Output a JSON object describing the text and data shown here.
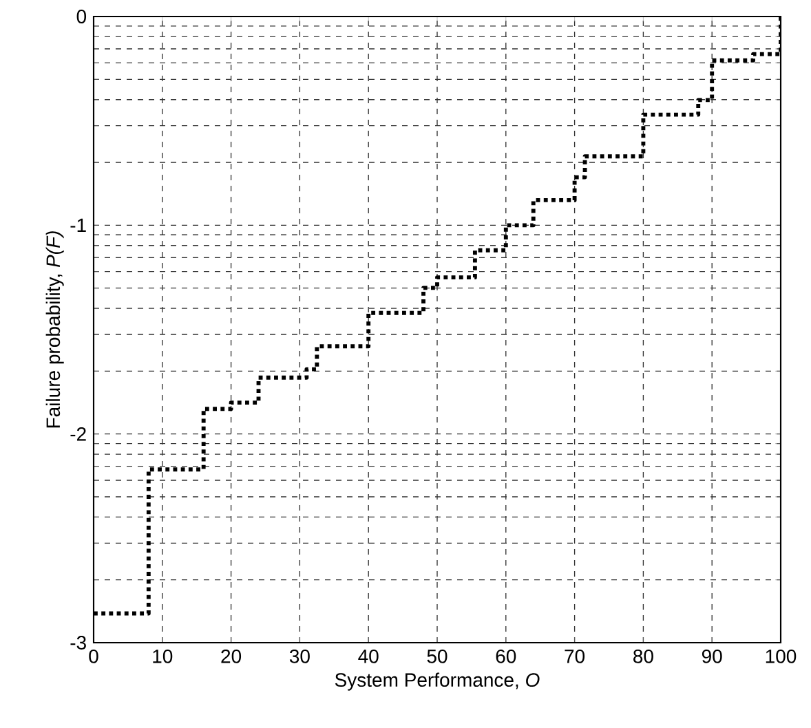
{
  "chart_data": {
    "type": "step",
    "xlabel": "System Performance, *O*",
    "ylabel": "Failure probability, *P(F)*",
    "x": [
      0,
      8,
      16,
      20,
      24,
      31,
      32.5,
      40,
      48,
      50,
      55.5,
      60,
      64,
      70,
      71.5,
      80,
      88,
      90,
      96,
      100
    ],
    "series": [
      {
        "color": "#000000",
        "line_style": "dotted",
        "values": [
          -2.86,
          -2.17,
          -1.88,
          -1.85,
          -1.73,
          -1.69,
          -1.58,
          -1.42,
          -1.3,
          -1.25,
          -1.12,
          -1.0,
          -0.88,
          -0.77,
          -0.67,
          -0.47,
          -0.4,
          -0.21,
          -0.18,
          0
        ]
      }
    ],
    "xlim": [
      0,
      100
    ],
    "ylim": [
      -3,
      0
    ],
    "xticks": [
      0,
      10,
      20,
      30,
      40,
      50,
      60,
      70,
      80,
      90,
      100
    ],
    "yticks": [
      -3,
      {
        "value": -2.699,
        "label": null
      },
      {
        "value": -2.523,
        "label": null
      },
      {
        "value": -2.398,
        "label": null
      },
      {
        "value": -2.301,
        "label": null
      },
      {
        "value": -2.222,
        "label": null
      },
      {
        "value": -2.155,
        "label": null
      },
      {
        "value": -2.097,
        "label": null
      },
      {
        "value": -2.046,
        "label": null
      },
      -2,
      {
        "value": -1.699,
        "label": null
      },
      {
        "value": -1.523,
        "label": null
      },
      {
        "value": -1.398,
        "label": null
      },
      {
        "value": -1.301,
        "label": null
      },
      {
        "value": -1.222,
        "label": null
      },
      {
        "value": -1.155,
        "label": null
      },
      {
        "value": -1.097,
        "label": null
      },
      {
        "value": -1.046,
        "label": null
      },
      -1,
      {
        "value": -0.699,
        "label": null
      },
      {
        "value": -0.523,
        "label": null
      },
      {
        "value": -0.398,
        "label": null
      },
      {
        "value": -0.301,
        "label": null
      },
      {
        "value": -0.222,
        "label": null
      },
      {
        "value": -0.155,
        "label": null
      },
      {
        "value": -0.097,
        "label": null
      },
      {
        "value": -0.046,
        "label": null
      },
      0
    ],
    "grid": true
  }
}
